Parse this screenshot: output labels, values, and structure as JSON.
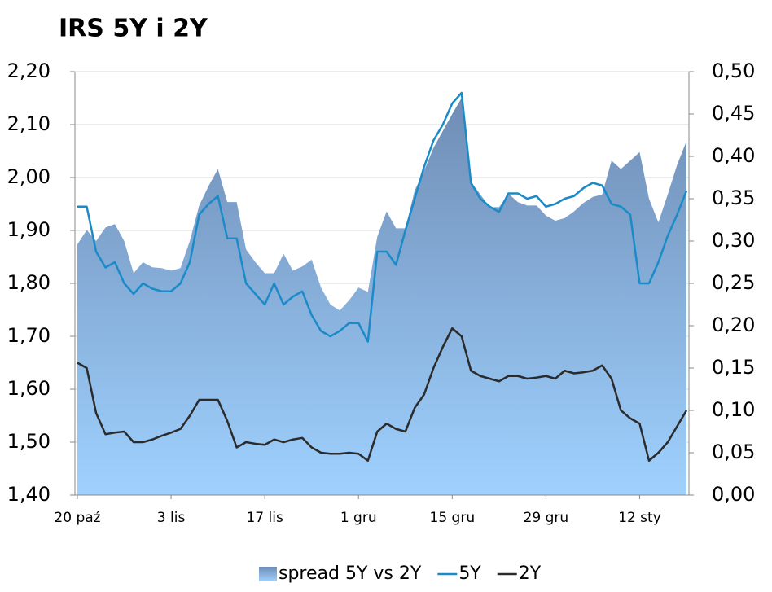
{
  "chart_data": {
    "type": "line",
    "title": "IRS 5Y i 2Y",
    "categories": [
      "20 paź",
      null,
      null,
      null,
      null,
      null,
      null,
      null,
      null,
      null,
      "3 lis",
      null,
      null,
      null,
      null,
      null,
      null,
      null,
      null,
      null,
      "17 lis",
      null,
      null,
      null,
      null,
      null,
      null,
      null,
      null,
      null,
      "1 gru",
      null,
      null,
      null,
      null,
      null,
      null,
      null,
      null,
      null,
      "15 gru",
      null,
      null,
      null,
      null,
      null,
      null,
      null,
      null,
      null,
      "29 gru",
      null,
      null,
      null,
      null,
      null,
      null,
      null,
      null,
      null,
      "12 sty",
      null,
      null,
      null,
      null,
      null
    ],
    "series": [
      {
        "name": "spread 5Y vs 2Y",
        "type": "area",
        "axis": "y2",
        "color": "#6f8db5",
        "values": [
          0.296,
          0.313,
          0.3,
          0.316,
          0.32,
          0.3,
          0.262,
          0.275,
          0.269,
          0.268,
          0.265,
          0.268,
          0.3,
          0.342,
          0.365,
          0.385,
          0.346,
          0.346,
          0.29,
          0.275,
          0.262,
          0.262,
          0.285,
          0.265,
          0.27,
          0.278,
          0.245,
          0.225,
          0.218,
          0.23,
          0.245,
          0.24,
          0.305,
          0.335,
          0.315,
          0.315,
          0.36,
          0.383,
          0.41,
          0.43,
          0.45,
          0.469,
          0.37,
          0.355,
          0.34,
          0.34,
          0.356,
          0.346,
          0.342,
          0.342,
          0.33,
          0.324,
          0.327,
          0.335,
          0.345,
          0.352,
          0.355,
          0.395,
          0.385,
          0.395,
          0.405,
          0.35,
          0.322,
          0.355,
          0.39,
          0.418
        ]
      },
      {
        "name": "5Y",
        "type": "line",
        "color": "#1b8bc8",
        "values": [
          1.945,
          1.945,
          1.86,
          1.83,
          1.84,
          1.8,
          1.78,
          1.8,
          1.79,
          1.785,
          1.785,
          1.8,
          1.84,
          1.93,
          1.95,
          1.965,
          1.885,
          1.885,
          1.8,
          1.78,
          1.76,
          1.8,
          1.76,
          1.775,
          1.785,
          1.74,
          1.71,
          1.7,
          1.71,
          1.725,
          1.725,
          1.69,
          1.86,
          1.86,
          1.835,
          1.9,
          1.96,
          2.02,
          2.07,
          2.1,
          2.14,
          2.16,
          1.99,
          1.96,
          1.945,
          1.935,
          1.97,
          1.97,
          1.96,
          1.965,
          1.945,
          1.95,
          1.96,
          1.965,
          1.98,
          1.99,
          1.985,
          1.95,
          1.945,
          1.93,
          1.8,
          1.8,
          1.84,
          1.89,
          1.93,
          1.975
        ]
      },
      {
        "name": "2Y",
        "type": "line",
        "color": "#2b2b2b",
        "values": [
          1.65,
          1.64,
          1.555,
          1.515,
          1.518,
          1.52,
          1.5,
          1.5,
          1.505,
          1.512,
          1.518,
          1.525,
          1.55,
          1.58,
          1.58,
          1.58,
          1.54,
          1.49,
          1.5,
          1.497,
          1.495,
          1.505,
          1.5,
          1.505,
          1.508,
          1.49,
          1.48,
          1.478,
          1.478,
          1.48,
          1.478,
          1.465,
          1.52,
          1.535,
          1.525,
          1.52,
          1.565,
          1.59,
          1.64,
          1.68,
          1.715,
          1.7,
          1.635,
          1.625,
          1.62,
          1.615,
          1.625,
          1.625,
          1.62,
          1.622,
          1.625,
          1.62,
          1.635,
          1.63,
          1.632,
          1.635,
          1.645,
          1.62,
          1.56,
          1.545,
          1.535,
          1.465,
          1.48,
          1.5,
          1.53,
          1.56
        ]
      }
    ],
    "ylim": [
      1.4,
      2.2
    ],
    "yticks": [
      {
        "value": 1.4,
        "label": "1,40"
      },
      {
        "value": 1.5,
        "label": "1,50"
      },
      {
        "value": 1.6,
        "label": "1,60"
      },
      {
        "value": 1.7,
        "label": "1,70"
      },
      {
        "value": 1.8,
        "label": "1,80"
      },
      {
        "value": 1.9,
        "label": "1,90"
      },
      {
        "value": 2.0,
        "label": "2,00"
      },
      {
        "value": 2.1,
        "label": "2,10"
      },
      {
        "value": 2.2,
        "label": "2,20"
      }
    ],
    "y2lim": [
      0,
      0.5
    ],
    "y2ticks": [
      {
        "value": 0,
        "label": "0,00"
      },
      {
        "value": 0.05,
        "label": "0,05"
      },
      {
        "value": 0.1,
        "label": "0,10"
      },
      {
        "value": 0.15,
        "label": "0,15"
      },
      {
        "value": 0.2,
        "label": "0,20"
      },
      {
        "value": 0.25,
        "label": "0,25"
      },
      {
        "value": 0.3,
        "label": "0,30"
      },
      {
        "value": 0.35,
        "label": "0,35"
      },
      {
        "value": 0.4,
        "label": "0,40"
      },
      {
        "value": 0.45,
        "label": "0,45"
      },
      {
        "value": 0.5,
        "label": "0,50"
      }
    ],
    "grid": true,
    "legend": "bottom"
  }
}
